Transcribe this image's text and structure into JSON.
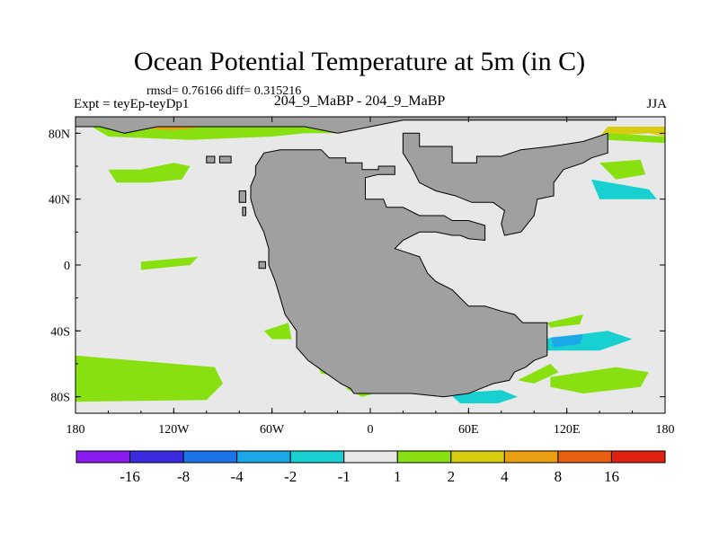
{
  "chart_data": {
    "type": "heatmap",
    "title": "Ocean Potential Temperature at 5m (in C)",
    "stats": "rmsd= 0.76166 diff= 0.315216",
    "subtitle": "204_9_MaBP - 204_9_MaBP",
    "experiment": "Expt = teyEp-teyDp1",
    "season": "JJA",
    "x_ticks": [
      "180",
      "120W",
      "60W",
      "0",
      "60E",
      "120E",
      "180"
    ],
    "x_tick_values": [
      -180,
      -120,
      -60,
      0,
      60,
      120,
      180
    ],
    "y_ticks": [
      "80N",
      "40N",
      "0",
      "40S",
      "80S"
    ],
    "y_tick_values": [
      80,
      40,
      0,
      -40,
      -80
    ],
    "xlim": [
      -180,
      180
    ],
    "ylim": [
      -90,
      90
    ],
    "colorbar": {
      "labels": [
        "-16",
        "-8",
        "-4",
        "-2",
        "-1",
        "1",
        "2",
        "4",
        "8",
        "16"
      ],
      "colors": [
        "#8a1cf0",
        "#3a2ae0",
        "#1a74e8",
        "#1aa8e8",
        "#18d0d0",
        "#e8e8e8",
        "#88e010",
        "#d8cc10",
        "#e8a010",
        "#e86010",
        "#e02010"
      ]
    },
    "colors": {
      "land": "#a0a0a0",
      "ocean_neutral": "#e8e8e8",
      "warm_2": "#88e010",
      "warm_4": "#d8cc10",
      "warm_8": "#e8a010",
      "warm_16": "#e86010",
      "cool_1": "#18d0d0",
      "cool_2": "#1aa8e8"
    },
    "landmasses": [
      {
        "name": "pangaea-main",
        "lonlat": [
          [
            -55,
            70
          ],
          [
            -30,
            70
          ],
          [
            -25,
            65
          ],
          [
            -15,
            65
          ],
          [
            -15,
            62
          ],
          [
            -5,
            62
          ],
          [
            -5,
            58
          ],
          [
            5,
            58
          ],
          [
            5,
            60
          ],
          [
            15,
            60
          ],
          [
            15,
            55
          ],
          [
            5,
            55
          ],
          [
            -3,
            53
          ],
          [
            -3,
            40
          ],
          [
            8,
            40
          ],
          [
            10,
            35
          ],
          [
            20,
            35
          ],
          [
            30,
            30
          ],
          [
            45,
            30
          ],
          [
            50,
            27
          ],
          [
            60,
            27
          ],
          [
            70,
            24
          ],
          [
            70,
            15
          ],
          [
            60,
            16
          ],
          [
            55,
            18
          ],
          [
            50,
            18
          ],
          [
            40,
            20
          ],
          [
            30,
            20
          ],
          [
            20,
            15
          ],
          [
            15,
            10
          ],
          [
            30,
            5
          ],
          [
            35,
            -5
          ],
          [
            40,
            -10
          ],
          [
            50,
            -15
          ],
          [
            55,
            -20
          ],
          [
            60,
            -25
          ],
          [
            70,
            -25
          ],
          [
            80,
            -28
          ],
          [
            88,
            -30
          ],
          [
            93,
            -35
          ],
          [
            108,
            -35
          ],
          [
            108,
            -55
          ],
          [
            100,
            -58
          ],
          [
            95,
            -62
          ],
          [
            88,
            -65
          ],
          [
            85,
            -70
          ],
          [
            75,
            -72
          ],
          [
            65,
            -76
          ],
          [
            60,
            -78
          ],
          [
            45,
            -80
          ],
          [
            25,
            -78
          ],
          [
            10,
            -78
          ],
          [
            -10,
            -78
          ],
          [
            -12,
            -75
          ],
          [
            -18,
            -72
          ],
          [
            -28,
            -65
          ],
          [
            -38,
            -58
          ],
          [
            -45,
            -50
          ],
          [
            -45,
            -40
          ],
          [
            -52,
            -30
          ],
          [
            -55,
            -20
          ],
          [
            -58,
            -10
          ],
          [
            -62,
            0
          ],
          [
            -62,
            10
          ],
          [
            -65,
            20
          ],
          [
            -70,
            30
          ],
          [
            -73,
            40
          ],
          [
            -73,
            48
          ],
          [
            -70,
            55
          ],
          [
            -70,
            60
          ],
          [
            -65,
            68
          ],
          [
            -55,
            70
          ]
        ]
      },
      {
        "name": "asia-east",
        "lonlat": [
          [
            30,
            80
          ],
          [
            30,
            72
          ],
          [
            50,
            72
          ],
          [
            50,
            62
          ],
          [
            65,
            62
          ],
          [
            65,
            66
          ],
          [
            80,
            66
          ],
          [
            92,
            70
          ],
          [
            110,
            72
          ],
          [
            130,
            75
          ],
          [
            145,
            80
          ],
          [
            145,
            68
          ],
          [
            135,
            65
          ],
          [
            130,
            62
          ],
          [
            118,
            58
          ],
          [
            112,
            50
          ],
          [
            112,
            42
          ],
          [
            102,
            40
          ],
          [
            100,
            30
          ],
          [
            92,
            20
          ],
          [
            82,
            18
          ],
          [
            80,
            25
          ],
          [
            82,
            33
          ],
          [
            75,
            38
          ],
          [
            62,
            38
          ],
          [
            52,
            42
          ],
          [
            40,
            45
          ],
          [
            30,
            50
          ],
          [
            25,
            60
          ],
          [
            20,
            68
          ],
          [
            20,
            80
          ]
        ]
      },
      {
        "name": "north-polar",
        "lonlat": [
          [
            -150,
            90
          ],
          [
            150,
            90
          ],
          [
            150,
            88
          ],
          [
            20,
            88
          ],
          [
            -20,
            80
          ],
          [
            -40,
            84
          ],
          [
            -70,
            84
          ],
          [
            -100,
            84
          ],
          [
            -130,
            84
          ],
          [
            -150,
            80
          ],
          [
            -165,
            84
          ],
          [
            -180,
            84
          ],
          [
            -180,
            90
          ]
        ]
      }
    ],
    "anomaly_patches": [
      {
        "category": "2",
        "lonlat": [
          [
            -160,
            58
          ],
          [
            -140,
            58
          ],
          [
            -120,
            62
          ],
          [
            -110,
            60
          ],
          [
            -115,
            52
          ],
          [
            -135,
            50
          ],
          [
            -155,
            50
          ]
        ]
      },
      {
        "category": "2",
        "lonlat": [
          [
            -180,
            -55
          ],
          [
            -95,
            -62
          ],
          [
            -90,
            -72
          ],
          [
            -100,
            -82
          ],
          [
            -180,
            -83
          ]
        ]
      },
      {
        "category": "2",
        "lonlat": [
          [
            -140,
            2
          ],
          [
            -105,
            5
          ],
          [
            -110,
            0
          ],
          [
            -140,
            -3
          ]
        ]
      },
      {
        "category": "2",
        "lonlat": [
          [
            110,
            -68
          ],
          [
            150,
            -62
          ],
          [
            170,
            -65
          ],
          [
            165,
            -74
          ],
          [
            130,
            -78
          ],
          [
            110,
            -74
          ]
        ]
      },
      {
        "category": "2",
        "lonlat": [
          [
            140,
            62
          ],
          [
            165,
            64
          ],
          [
            168,
            55
          ],
          [
            150,
            52
          ]
        ]
      },
      {
        "category": "4",
        "lonlat": [
          [
            -160,
            80
          ],
          [
            -140,
            78
          ],
          [
            -110,
            80
          ],
          [
            -90,
            80
          ],
          [
            -100,
            84
          ],
          0
        ]
      },
      {
        "category": "2",
        "lonlat": [
          [
            -170,
            84
          ],
          [
            -160,
            78
          ],
          [
            -110,
            76
          ],
          [
            -60,
            78
          ],
          [
            -40,
            80
          ],
          [
            -20,
            80
          ],
          [
            -40,
            86
          ],
          [
            -170,
            88
          ]
        ]
      },
      {
        "category": "8",
        "lonlat": [
          [
            -160,
            84
          ],
          [
            -120,
            82
          ],
          [
            -100,
            84
          ],
          [
            -130,
            86
          ]
        ]
      },
      {
        "category": "4",
        "lonlat": [
          [
            140,
            78
          ],
          [
            170,
            80
          ],
          [
            180,
            78
          ],
          [
            180,
            84
          ],
          [
            145,
            84
          ]
        ]
      },
      {
        "category": "2",
        "lonlat": [
          [
            145,
            76
          ],
          [
            180,
            74
          ],
          [
            180,
            78
          ],
          [
            145,
            80
          ]
        ]
      },
      {
        "category": "-1",
        "lonlat": [
          [
            105,
            -45
          ],
          [
            145,
            -40
          ],
          [
            160,
            -45
          ],
          [
            140,
            -52
          ],
          [
            108,
            -52
          ]
        ]
      },
      {
        "category": "-2",
        "lonlat": [
          [
            110,
            -44
          ],
          [
            130,
            -42
          ],
          [
            128,
            -48
          ],
          [
            112,
            -50
          ]
        ]
      },
      {
        "category": "-1",
        "lonlat": [
          [
            48,
            -78
          ],
          [
            80,
            -76
          ],
          [
            90,
            -80
          ],
          [
            78,
            -84
          ],
          [
            55,
            -84
          ]
        ]
      },
      {
        "category": "-1",
        "lonlat": [
          [
            135,
            52
          ],
          [
            170,
            46
          ],
          [
            175,
            40
          ],
          [
            140,
            40
          ]
        ]
      },
      {
        "category": "2",
        "lonlat": [
          [
            -35,
            -55
          ],
          [
            -15,
            -60
          ],
          [
            -10,
            -68
          ],
          [
            -30,
            -66
          ]
        ]
      },
      {
        "category": "2",
        "lonlat": [
          [
            -15,
            -75
          ],
          [
            0,
            -72
          ],
          [
            10,
            -76
          ],
          [
            -5,
            -80
          ]
        ]
      },
      {
        "category": "2",
        "lonlat": [
          [
            90,
            -70
          ],
          [
            110,
            -60
          ],
          [
            115,
            -65
          ],
          [
            100,
            -72
          ]
        ]
      },
      {
        "category": "2",
        "lonlat": [
          [
            -65,
            -40
          ],
          [
            -50,
            -35
          ],
          [
            -48,
            -45
          ],
          [
            -60,
            -45
          ]
        ]
      },
      {
        "category": "2",
        "lonlat": [
          [
            108,
            -35
          ],
          [
            130,
            -30
          ],
          [
            128,
            -36
          ],
          [
            110,
            -38
          ]
        ]
      }
    ],
    "islands": [
      {
        "lonlat": [
          [
            -80,
            45
          ],
          [
            -76,
            45
          ],
          [
            -76,
            38
          ],
          [
            -80,
            38
          ]
        ]
      },
      {
        "lonlat": [
          [
            -78,
            35
          ],
          [
            -76,
            35
          ],
          [
            -76,
            30
          ],
          [
            -78,
            30
          ]
        ]
      },
      {
        "lonlat": [
          [
            -68,
            2
          ],
          [
            -64,
            2
          ],
          [
            -64,
            -2
          ],
          [
            -68,
            -2
          ]
        ]
      },
      {
        "lonlat": [
          [
            -100,
            66
          ],
          [
            -95,
            66
          ],
          [
            -95,
            62
          ],
          [
            -100,
            62
          ]
        ]
      },
      {
        "lonlat": [
          [
            -92,
            66
          ],
          [
            -85,
            66
          ],
          [
            -85,
            62
          ],
          [
            -92,
            62
          ]
        ]
      }
    ]
  }
}
